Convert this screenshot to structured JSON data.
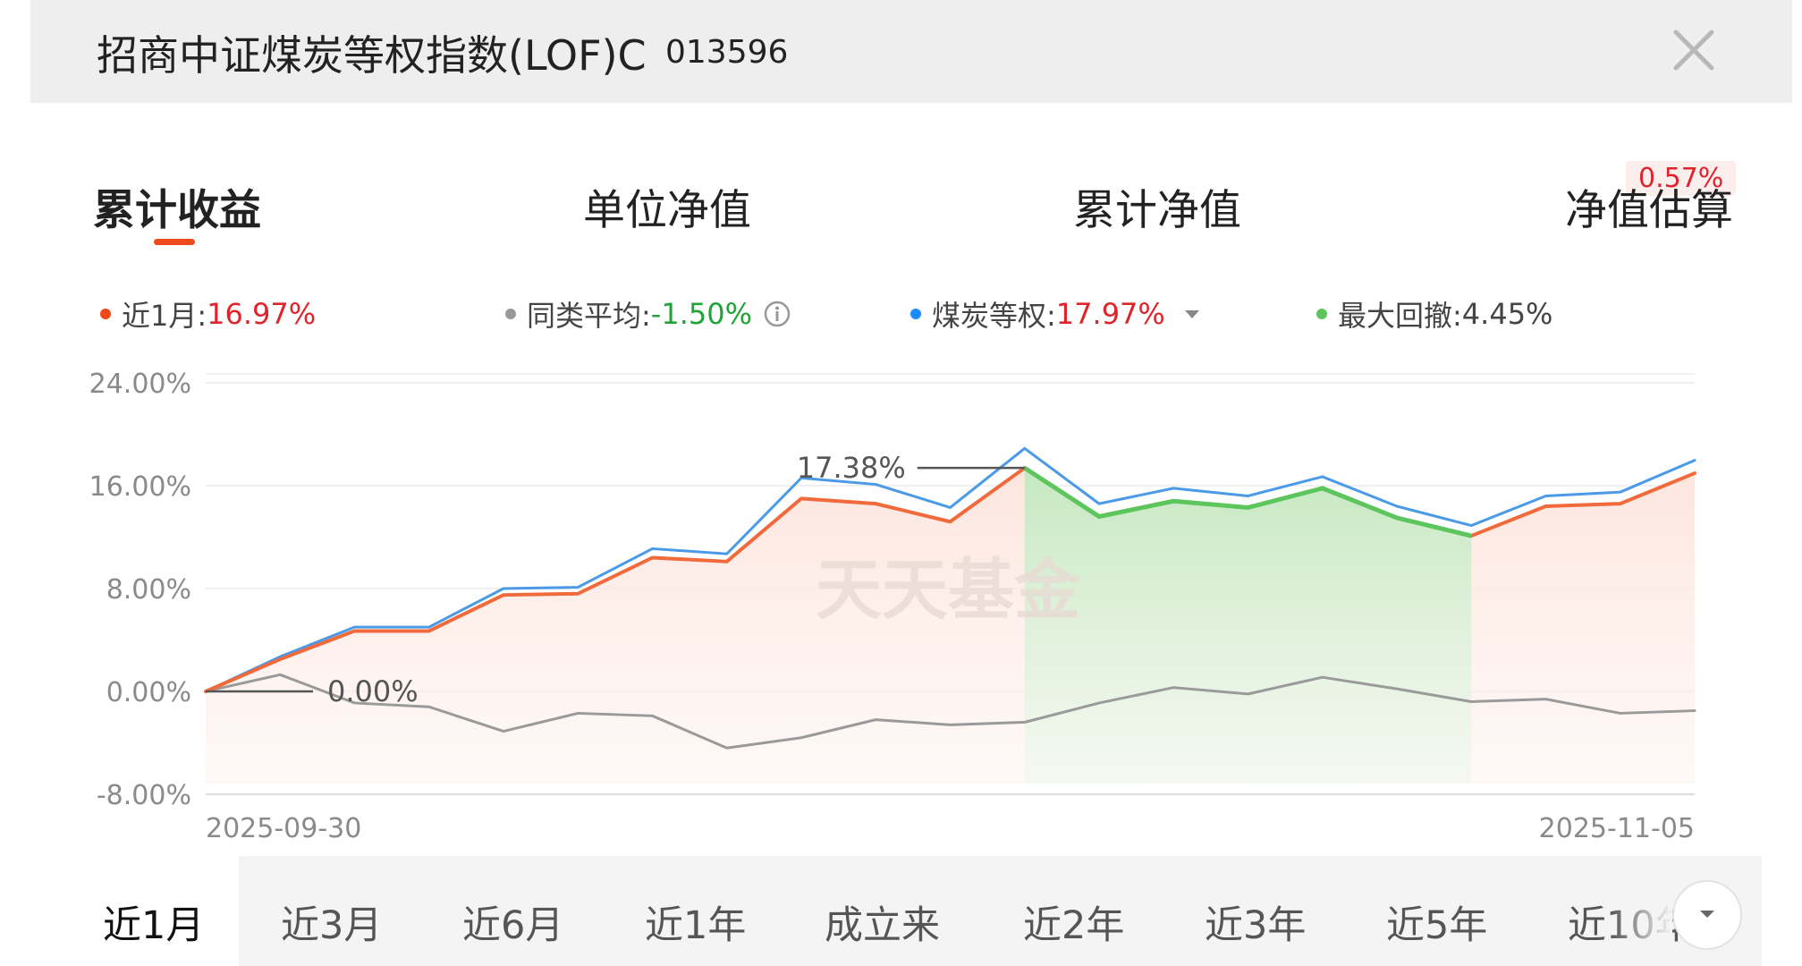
{
  "header": {
    "fund_name": "招商中证煤炭等权指数(LOF)C",
    "fund_code": "013596",
    "close_icon": "close-icon"
  },
  "tabs": [
    {
      "label": "累计收益",
      "active": true
    },
    {
      "label": "单位净值",
      "active": false
    },
    {
      "label": "累计净值",
      "active": false
    },
    {
      "label": "净值估算",
      "active": false,
      "badge": "0.57%"
    }
  ],
  "legend": {
    "fund": {
      "label": "近1月:",
      "value": "16.97%",
      "color": "#f04a1c"
    },
    "peer": {
      "label": "同类平均:",
      "value": "-1.50%",
      "color": "#999999",
      "icon": "info-icon"
    },
    "index": {
      "label": "煤炭等权:",
      "value": "17.97%",
      "color": "#1a8cff",
      "icon": "caret-down-icon"
    },
    "drawdown": {
      "label": "最大回撤:",
      "value": "4.45%",
      "color": "#5cc55c"
    }
  },
  "chart_data": {
    "type": "line",
    "y_ticks": [
      "24.00%",
      "16.00%",
      "8.00%",
      "0.00%",
      "-8.00%"
    ],
    "ylim": [
      -8,
      24
    ],
    "x_start_label": "2025-09-30",
    "x_end_label": "2025-11-05",
    "watermark": "天天基金",
    "series": [
      {
        "name": "近1月",
        "color": "#f06a3c",
        "values": [
          0.0,
          2.5,
          4.7,
          4.7,
          7.5,
          7.6,
          10.4,
          10.1,
          15.0,
          14.6,
          13.2,
          17.38,
          13.6,
          14.8,
          14.3,
          15.8,
          13.5,
          12.1,
          14.4,
          14.6,
          16.97
        ]
      },
      {
        "name": "煤炭等权",
        "color": "#4a9ae8",
        "values": [
          0.0,
          2.7,
          5.0,
          5.0,
          8.0,
          8.1,
          11.1,
          10.7,
          16.6,
          16.1,
          14.3,
          18.9,
          14.6,
          15.8,
          15.2,
          16.7,
          14.4,
          12.9,
          15.2,
          15.5,
          17.97
        ]
      },
      {
        "name": "同类平均",
        "color": "#9a9a9a",
        "values": [
          0.0,
          1.3,
          -0.9,
          -1.2,
          -3.1,
          -1.7,
          -1.9,
          -4.4,
          -3.6,
          -2.2,
          -2.6,
          -2.4,
          -0.9,
          0.3,
          -0.2,
          1.1,
          0.2,
          -0.8,
          -0.6,
          -1.7,
          -1.5
        ]
      }
    ],
    "annotations": [
      {
        "text": "17.38%",
        "index": 11,
        "value": 17.38
      },
      {
        "text": "0.00%",
        "index": 0,
        "value": 0.0
      }
    ],
    "max_drawdown": {
      "start_index": 11,
      "end_index": 17,
      "color": "#5cc55c"
    }
  },
  "periods": [
    {
      "label": "近1月",
      "active": true
    },
    {
      "label": "近3月",
      "active": false
    },
    {
      "label": "近6月",
      "active": false
    },
    {
      "label": "近1年",
      "active": false
    },
    {
      "label": "成立来",
      "active": false
    },
    {
      "label": "近2年",
      "active": false
    },
    {
      "label": "近3年",
      "active": false
    },
    {
      "label": "近5年",
      "active": false
    },
    {
      "label": "近10年",
      "active": false
    }
  ]
}
